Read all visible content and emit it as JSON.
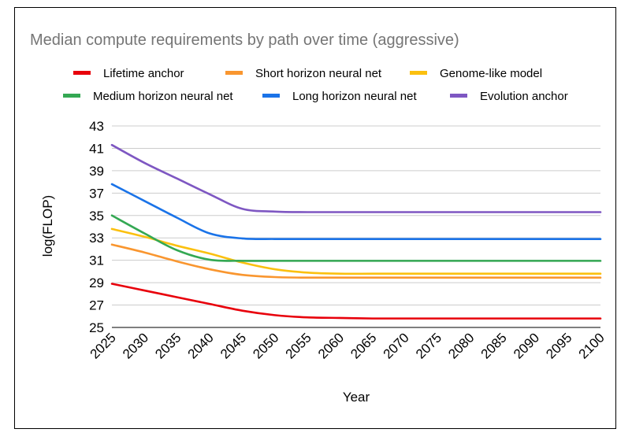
{
  "chart_data": {
    "type": "line",
    "title": "Median compute requirements by path over time (aggressive)",
    "xlabel": "Year",
    "ylabel": "log(FLOP)",
    "xlim": [
      2025,
      2100
    ],
    "ylim": [
      25,
      43
    ],
    "grid": "horizontal",
    "legend_position": "top",
    "x_ticks": [
      2025,
      2030,
      2035,
      2040,
      2045,
      2050,
      2055,
      2060,
      2065,
      2070,
      2075,
      2080,
      2085,
      2090,
      2095,
      2100
    ],
    "y_ticks": [
      25,
      27,
      29,
      31,
      33,
      35,
      37,
      39,
      41,
      43
    ],
    "x": [
      2025,
      2030,
      2035,
      2040,
      2045,
      2050,
      2055,
      2060,
      2065,
      2070,
      2075,
      2080,
      2085,
      2090,
      2095,
      2100
    ],
    "series": [
      {
        "name": "Lifetime anchor",
        "color": "#e8000b",
        "values": [
          28.9,
          28.3,
          27.7,
          27.1,
          26.5,
          26.1,
          25.9,
          25.85,
          25.8,
          25.8,
          25.8,
          25.8,
          25.8,
          25.8,
          25.8,
          25.8
        ]
      },
      {
        "name": "Short horizon neural net",
        "color": "#f9962f",
        "values": [
          32.4,
          31.7,
          30.9,
          30.2,
          29.7,
          29.5,
          29.45,
          29.45,
          29.45,
          29.45,
          29.45,
          29.45,
          29.45,
          29.45,
          29.45,
          29.45
        ]
      },
      {
        "name": "Genome-like model",
        "color": "#fbc00f",
        "values": [
          33.8,
          33.1,
          32.3,
          31.6,
          30.8,
          30.2,
          29.9,
          29.8,
          29.8,
          29.8,
          29.8,
          29.8,
          29.8,
          29.8,
          29.8,
          29.8
        ]
      },
      {
        "name": "Medium horizon neural net",
        "color": "#34a853",
        "values": [
          35.0,
          33.4,
          31.9,
          31.05,
          30.95,
          30.95,
          30.95,
          30.95,
          30.95,
          30.95,
          30.95,
          30.95,
          30.95,
          30.95,
          30.95,
          30.95
        ]
      },
      {
        "name": "Long horizon neural net",
        "color": "#1a73e8",
        "values": [
          37.8,
          36.3,
          34.8,
          33.4,
          32.95,
          32.9,
          32.9,
          32.9,
          32.9,
          32.9,
          32.9,
          32.9,
          32.9,
          32.9,
          32.9,
          32.9
        ]
      },
      {
        "name": "Evolution anchor",
        "color": "#7e57c2",
        "values": [
          41.3,
          39.7,
          38.3,
          36.9,
          35.6,
          35.35,
          35.3,
          35.3,
          35.3,
          35.3,
          35.3,
          35.3,
          35.3,
          35.3,
          35.3,
          35.3
        ]
      }
    ]
  }
}
